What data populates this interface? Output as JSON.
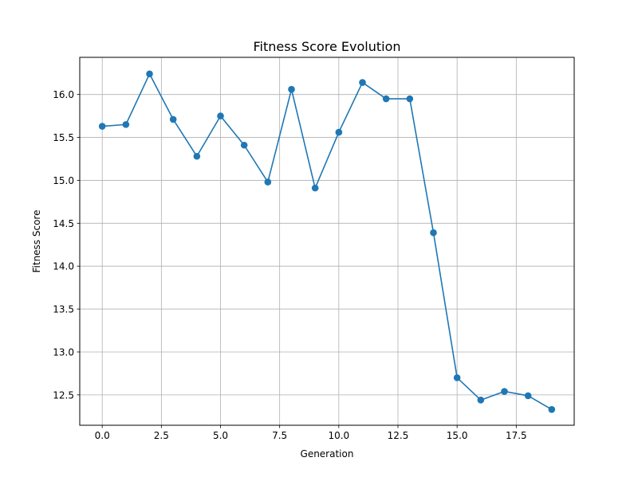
{
  "chart_data": {
    "type": "line",
    "title": "Fitness Score Evolution",
    "xlabel": "Generation",
    "ylabel": "Fitness Score",
    "xlim": [
      -0.95,
      19.95
    ],
    "ylim": [
      12.146,
      16.433
    ],
    "grid": true,
    "line_color": "#1f77b4",
    "marker": "circle",
    "xticks": [
      0.0,
      2.5,
      5.0,
      7.5,
      10.0,
      12.5,
      15.0,
      17.5
    ],
    "xtick_labels": [
      "0.0",
      "2.5",
      "5.0",
      "7.5",
      "10.0",
      "12.5",
      "15.0",
      "17.5"
    ],
    "yticks": [
      12.5,
      13.0,
      13.5,
      14.0,
      14.5,
      15.0,
      15.5,
      16.0
    ],
    "ytick_labels": [
      "12.5",
      "13.0",
      "13.5",
      "14.0",
      "14.5",
      "15.0",
      "15.5",
      "16.0"
    ],
    "x": [
      0,
      1,
      2,
      3,
      4,
      5,
      6,
      7,
      8,
      9,
      10,
      11,
      12,
      13,
      14,
      15,
      16,
      17,
      18,
      19
    ],
    "y": [
      15.63,
      15.65,
      16.24,
      15.71,
      15.28,
      15.75,
      15.41,
      14.98,
      16.06,
      14.91,
      15.56,
      16.14,
      15.95,
      15.95,
      14.39,
      12.7,
      12.44,
      12.54,
      12.49,
      12.33
    ]
  }
}
